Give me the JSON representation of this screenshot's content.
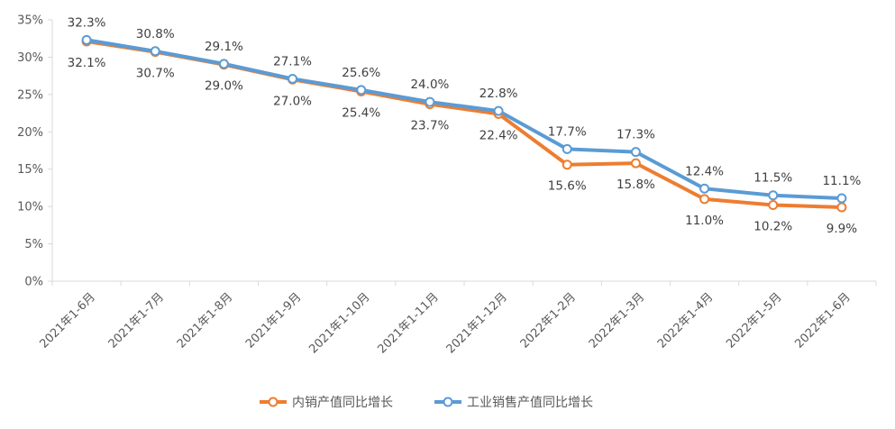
{
  "chart_data": {
    "type": "line",
    "categories": [
      "2021年1-6月",
      "2021年1-7月",
      "2021年1-8月",
      "2021年1-9月",
      "2021年1-10月",
      "2021年1-11月",
      "2021年1-12月",
      "2022年1-2月",
      "2022年1-3月",
      "2022年1-4月",
      "2022年1-5月",
      "2022年1-6月"
    ],
    "series": [
      {
        "name": "内销产值同比增长",
        "color": "#ED7D31",
        "values": [
          32.1,
          30.7,
          29.0,
          27.0,
          25.4,
          23.7,
          22.4,
          15.6,
          15.8,
          11.0,
          10.2,
          9.9
        ],
        "labels": [
          "32.1%",
          "30.7%",
          "29.0%",
          "27.0%",
          "25.4%",
          "23.7%",
          "22.4%",
          "15.6%",
          "15.8%",
          "11.0%",
          "10.2%",
          "9.9%"
        ]
      },
      {
        "name": "工业销售产值同比增长",
        "color": "#5B9BD5",
        "values": [
          32.3,
          30.8,
          29.1,
          27.1,
          25.6,
          24.0,
          22.8,
          17.7,
          17.3,
          12.4,
          11.5,
          11.1
        ],
        "labels": [
          "32.3%",
          "30.8%",
          "29.1%",
          "27.1%",
          "25.6%",
          "24.0%",
          "22.8%",
          "17.7%",
          "17.3%",
          "12.4%",
          "11.5%",
          "11.1%"
        ]
      }
    ],
    "yticks": [
      0,
      5,
      10,
      15,
      20,
      25,
      30,
      35
    ],
    "ytick_labels": [
      "0%",
      "5%",
      "10%",
      "15%",
      "20%",
      "25%",
      "30%",
      "35%"
    ],
    "ylim": [
      0,
      35
    ],
    "legend_position": "bottom",
    "grid": false
  }
}
